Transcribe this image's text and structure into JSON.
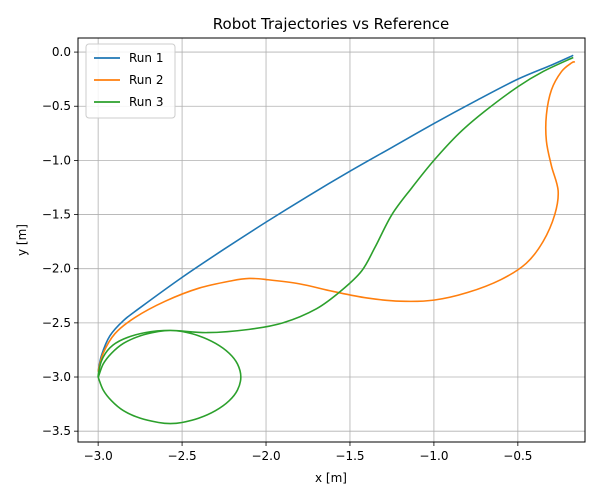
{
  "chart_data": {
    "type": "line",
    "title": "Robot Trajectories vs Reference",
    "xlabel": "x [m]",
    "ylabel": "y [m]",
    "xlim": [
      -3.12,
      -0.1
    ],
    "ylim": [
      -3.6,
      0.13
    ],
    "xticks": [
      -3.0,
      -2.5,
      -2.0,
      -1.5,
      -1.0,
      -0.5
    ],
    "yticks": [
      0.0,
      -0.5,
      -1.0,
      -1.5,
      -2.0,
      -2.5,
      -3.0,
      -3.5
    ],
    "xtick_labels": [
      "−3.0",
      "−2.5",
      "−2.0",
      "−1.5",
      "−1.0",
      "−0.5"
    ],
    "ytick_labels": [
      "0.0",
      "−0.5",
      "−1.0",
      "−1.5",
      "−2.0",
      "−2.5",
      "−3.0",
      "−3.5"
    ],
    "grid": true,
    "legend_position": "top-left",
    "series": [
      {
        "name": "Run 1",
        "color": "#1f77b4",
        "points": [
          [
            -3.0,
            -2.95
          ],
          [
            -2.98,
            -2.8
          ],
          [
            -2.93,
            -2.62
          ],
          [
            -2.85,
            -2.48
          ],
          [
            -2.75,
            -2.36
          ],
          [
            -2.5,
            -2.08
          ],
          [
            -2.25,
            -1.82
          ],
          [
            -2.0,
            -1.57
          ],
          [
            -1.75,
            -1.33
          ],
          [
            -1.5,
            -1.1
          ],
          [
            -1.25,
            -0.88
          ],
          [
            -1.0,
            -0.66
          ],
          [
            -0.75,
            -0.45
          ],
          [
            -0.5,
            -0.25
          ],
          [
            -0.3,
            -0.12
          ],
          [
            -0.17,
            -0.03
          ]
        ]
      },
      {
        "name": "Run 2",
        "color": "#ff7f0e",
        "points": [
          [
            -3.0,
            -2.95
          ],
          [
            -2.97,
            -2.78
          ],
          [
            -2.9,
            -2.6
          ],
          [
            -2.78,
            -2.45
          ],
          [
            -2.6,
            -2.3
          ],
          [
            -2.4,
            -2.18
          ],
          [
            -2.2,
            -2.11
          ],
          [
            -2.1,
            -2.09
          ],
          [
            -2.0,
            -2.1
          ],
          [
            -1.8,
            -2.14
          ],
          [
            -1.6,
            -2.21
          ],
          [
            -1.4,
            -2.27
          ],
          [
            -1.2,
            -2.3
          ],
          [
            -1.0,
            -2.29
          ],
          [
            -0.8,
            -2.22
          ],
          [
            -0.6,
            -2.1
          ],
          [
            -0.45,
            -1.95
          ],
          [
            -0.35,
            -1.75
          ],
          [
            -0.28,
            -1.5
          ],
          [
            -0.26,
            -1.28
          ],
          [
            -0.3,
            -1.05
          ],
          [
            -0.33,
            -0.82
          ],
          [
            -0.33,
            -0.58
          ],
          [
            -0.3,
            -0.35
          ],
          [
            -0.24,
            -0.18
          ],
          [
            -0.18,
            -0.1
          ],
          [
            -0.16,
            -0.09
          ]
        ]
      },
      {
        "name": "Run 3",
        "color": "#2ca02c",
        "points": [
          [
            -3.0,
            -3.0
          ],
          [
            -2.97,
            -3.12
          ],
          [
            -2.92,
            -3.22
          ],
          [
            -2.85,
            -3.31
          ],
          [
            -2.75,
            -3.38
          ],
          [
            -2.64,
            -3.42
          ],
          [
            -2.57,
            -3.43
          ],
          [
            -2.5,
            -3.42
          ],
          [
            -2.4,
            -3.38
          ],
          [
            -2.3,
            -3.31
          ],
          [
            -2.22,
            -3.22
          ],
          [
            -2.17,
            -3.12
          ],
          [
            -2.15,
            -3.0
          ],
          [
            -2.17,
            -2.88
          ],
          [
            -2.22,
            -2.78
          ],
          [
            -2.3,
            -2.69
          ],
          [
            -2.4,
            -2.62
          ],
          [
            -2.5,
            -2.58
          ],
          [
            -2.57,
            -2.57
          ],
          [
            -2.64,
            -2.58
          ],
          [
            -2.75,
            -2.62
          ],
          [
            -2.85,
            -2.69
          ],
          [
            -2.92,
            -2.78
          ],
          [
            -2.97,
            -2.88
          ],
          [
            -3.0,
            -3.0
          ],
          [
            -2.98,
            -2.85
          ],
          [
            -2.93,
            -2.73
          ],
          [
            -2.85,
            -2.65
          ],
          [
            -2.72,
            -2.59
          ],
          [
            -2.57,
            -2.57
          ],
          [
            -2.35,
            -2.59
          ],
          [
            -2.1,
            -2.56
          ],
          [
            -1.9,
            -2.5
          ],
          [
            -1.7,
            -2.37
          ],
          [
            -1.55,
            -2.2
          ],
          [
            -1.43,
            -2.02
          ],
          [
            -1.35,
            -1.8
          ],
          [
            -1.25,
            -1.5
          ],
          [
            -1.13,
            -1.25
          ],
          [
            -1.0,
            -1.0
          ],
          [
            -0.85,
            -0.75
          ],
          [
            -0.7,
            -0.55
          ],
          [
            -0.5,
            -0.32
          ],
          [
            -0.35,
            -0.18
          ],
          [
            -0.17,
            -0.05
          ]
        ]
      }
    ]
  }
}
